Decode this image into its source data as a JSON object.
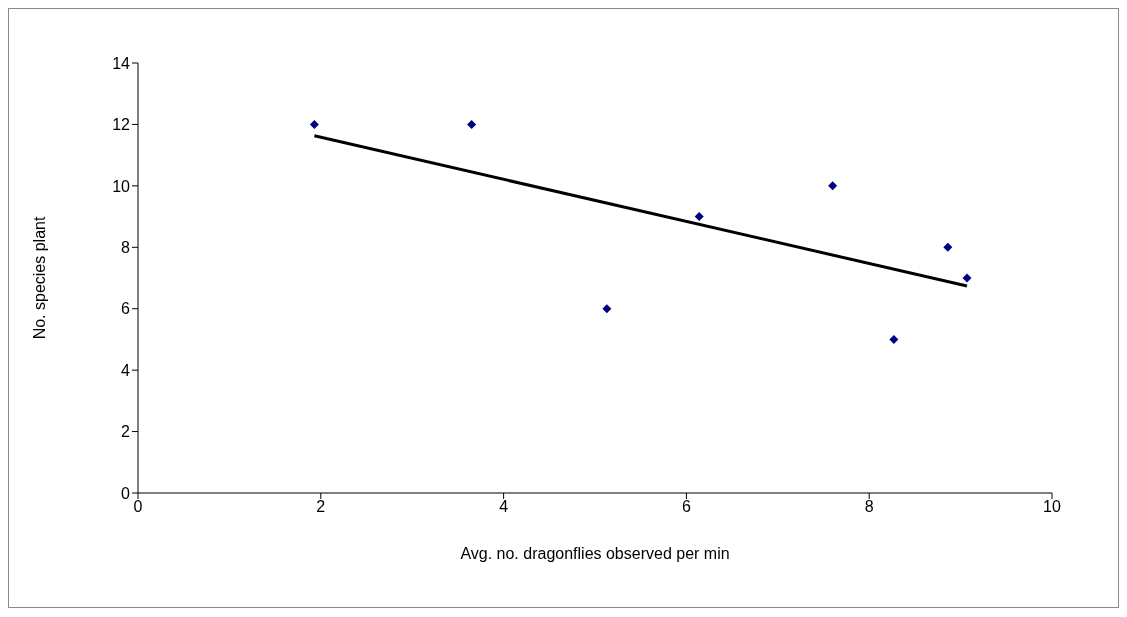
{
  "chart_data": {
    "type": "scatter",
    "xlabel": "Avg. no. dragonflies observed per min",
    "ylabel": "No. species plant",
    "xlim": [
      0,
      10
    ],
    "xticks": [
      0,
      2,
      4,
      6,
      8,
      10
    ],
    "ylim": [
      0,
      14
    ],
    "yticks": [
      0,
      2,
      4,
      6,
      8,
      10,
      12,
      14
    ],
    "grid": false,
    "legend": false,
    "marker": "diamond",
    "series": [
      {
        "color": "#000080",
        "x": [
          1.93,
          3.65,
          5.13,
          6.14,
          7.6,
          8.27,
          8.86,
          9.07
        ],
        "values": [
          12,
          12,
          6,
          9,
          10,
          5,
          8,
          7
        ]
      },
      {
        "type": "line",
        "color": "#000000",
        "marker": "none",
        "line_style": "solid",
        "x": [
          1.93,
          9.07
        ],
        "values": [
          11.63,
          6.74
        ]
      }
    ]
  }
}
